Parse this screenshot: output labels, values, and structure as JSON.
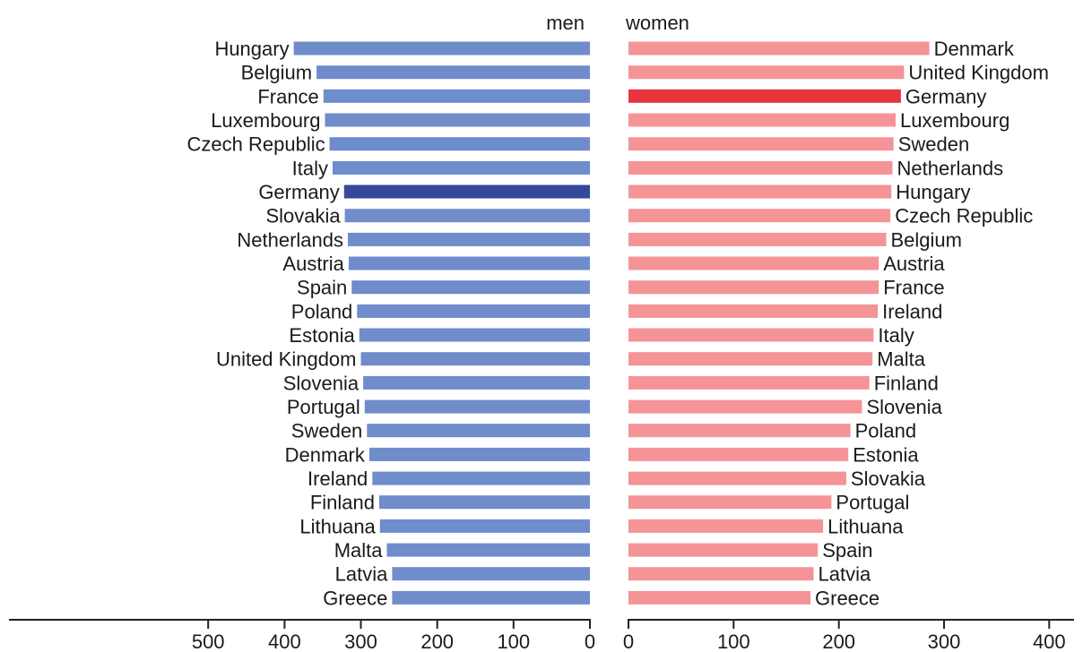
{
  "chart_data": [
    {
      "type": "bar",
      "orientation": "horizontal",
      "direction": "right-to-left",
      "title": "men",
      "xlim": [
        0,
        500
      ],
      "ticks": [
        "500",
        "400",
        "300",
        "200",
        "100",
        "0"
      ],
      "categories": [
        "Hungary",
        "Belgium",
        "France",
        "Luxembourg",
        "Czech Republic",
        "Italy",
        "Germany",
        "Slovakia",
        "Netherlands",
        "Austria",
        "Spain",
        "Poland",
        "Estonia",
        "United Kingdom",
        "Slovenia",
        "Portugal",
        "Sweden",
        "Denmark",
        "Ireland",
        "Finland",
        "Lithuana",
        "Malta",
        "Latvia",
        "Greece"
      ],
      "values": [
        388,
        358,
        349,
        347,
        341,
        337,
        322,
        321,
        317,
        316,
        312,
        305,
        302,
        300,
        297,
        295,
        292,
        289,
        285,
        276,
        275,
        266,
        259,
        259
      ],
      "highlight": "Germany",
      "colors": {
        "bar": "#6f8ccb",
        "highlight": "#35489b"
      }
    },
    {
      "type": "bar",
      "orientation": "horizontal",
      "direction": "left-to-right",
      "title": "women",
      "xlim": [
        0,
        400
      ],
      "ticks": [
        "0",
        "100",
        "200",
        "300",
        "400"
      ],
      "categories": [
        "Denmark",
        "United Kingdom",
        "Germany",
        "Luxembourg",
        "Sweden",
        "Netherlands",
        "Hungary",
        "Czech Republic",
        "Belgium",
        "Austria",
        "France",
        "Ireland",
        "Italy",
        "Malta",
        "Finland",
        "Slovenia",
        "Poland",
        "Estonia",
        "Slovakia",
        "Portugal",
        "Lithuana",
        "Spain",
        "Latvia",
        "Greece"
      ],
      "values": [
        286,
        262,
        259,
        254,
        252,
        251,
        250,
        249,
        245,
        238,
        238,
        237,
        233,
        232,
        229,
        222,
        211,
        209,
        207,
        193,
        185,
        180,
        176,
        173
      ],
      "highlight": "Germany",
      "colors": {
        "bar": "#f49497",
        "highlight": "#e8343e"
      }
    }
  ]
}
